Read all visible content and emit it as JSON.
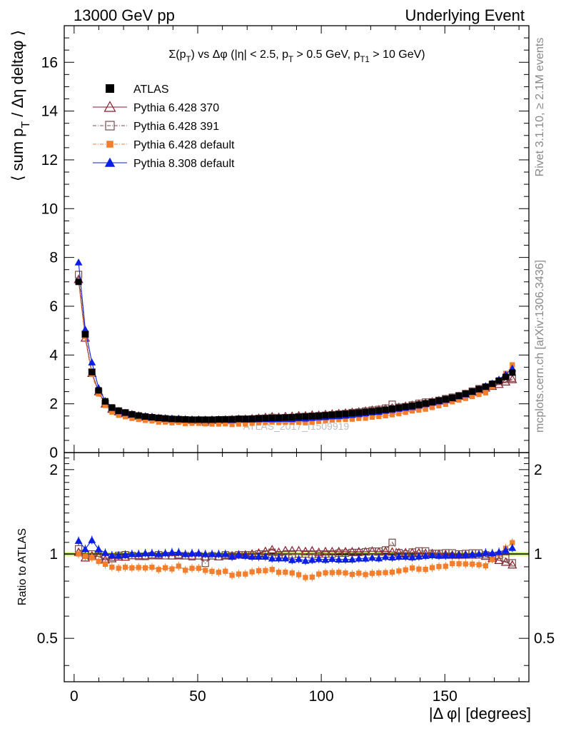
{
  "header": {
    "left": "13000 GeV pp",
    "right": "Underlying Event"
  },
  "side_labels": {
    "rivet": "Rivet 3.1.10, ≥ 2.1M events",
    "mcplots": "mcplots.cern.ch [arXiv:1306.3436]"
  },
  "watermark": "ATLAS_2017_I1509919",
  "colors": {
    "atlas": "#000000",
    "p370": "#8b1a2b",
    "p391": "#7a4a4a",
    "p6def": "#f57e2c",
    "p8def": "#0a1ee6",
    "band": "#c6f25a"
  },
  "chart_data": [
    {
      "type": "scatter",
      "title": "Σ(p_T) vs Δφ (|η| < 2.5, p_T > 0.5 GeV, p_T1 > 10 GeV)",
      "ylabel": "⟨ sum p_T / Δη deltaφ ⟩",
      "xlabel": "|Δ φ| [degrees]",
      "xlim": [
        -4,
        184
      ],
      "ylim": [
        0,
        17.5
      ],
      "grid": false,
      "legend_position": "top-left",
      "y_ticks": [
        0,
        2,
        4,
        6,
        8,
        10,
        12,
        14,
        16
      ],
      "x_ticks": [
        0,
        50,
        100,
        150
      ],
      "x": [
        1.8,
        4.5,
        7.2,
        9.9,
        12.6,
        15.3,
        18.0,
        20.7,
        23.4,
        26.1,
        28.8,
        31.5,
        34.2,
        36.9,
        39.6,
        42.3,
        45.0,
        47.7,
        50.4,
        53.1,
        55.8,
        58.5,
        61.2,
        63.9,
        66.6,
        69.3,
        72.0,
        74.7,
        77.4,
        80.1,
        82.8,
        85.5,
        88.2,
        90.9,
        93.6,
        96.3,
        99.0,
        101.7,
        104.4,
        107.1,
        109.8,
        112.5,
        115.2,
        117.9,
        120.6,
        123.3,
        126.0,
        128.7,
        131.4,
        134.1,
        136.8,
        139.5,
        142.2,
        144.9,
        147.6,
        150.3,
        153.0,
        155.7,
        158.4,
        161.1,
        163.8,
        166.5,
        169.2,
        171.9,
        174.6,
        177.3
      ],
      "series": [
        {
          "name": "ATLAS",
          "marker": "filled-square",
          "values": [
            7.0,
            4.85,
            3.3,
            2.55,
            2.1,
            1.85,
            1.72,
            1.64,
            1.57,
            1.52,
            1.48,
            1.45,
            1.42,
            1.4,
            1.38,
            1.37,
            1.36,
            1.35,
            1.35,
            1.35,
            1.35,
            1.36,
            1.36,
            1.37,
            1.38,
            1.38,
            1.39,
            1.4,
            1.41,
            1.42,
            1.43,
            1.44,
            1.45,
            1.47,
            1.48,
            1.5,
            1.51,
            1.53,
            1.55,
            1.57,
            1.59,
            1.62,
            1.64,
            1.67,
            1.7,
            1.73,
            1.76,
            1.8,
            1.84,
            1.88,
            1.92,
            1.97,
            2.02,
            2.07,
            2.13,
            2.19,
            2.25,
            2.33,
            2.41,
            2.5,
            2.6,
            2.7,
            2.82,
            2.95,
            3.1,
            3.28
          ]
        },
        {
          "name": "Pythia 6.428 370",
          "marker": "open-triangle",
          "values": [
            7.1,
            4.7,
            3.25,
            2.5,
            2.0,
            1.78,
            1.68,
            1.6,
            1.55,
            1.5,
            1.46,
            1.44,
            1.4,
            1.38,
            1.36,
            1.36,
            1.34,
            1.33,
            1.33,
            1.32,
            1.33,
            1.33,
            1.34,
            1.35,
            1.37,
            1.37,
            1.39,
            1.41,
            1.44,
            1.47,
            1.45,
            1.48,
            1.49,
            1.51,
            1.51,
            1.54,
            1.53,
            1.56,
            1.58,
            1.6,
            1.62,
            1.65,
            1.67,
            1.7,
            1.74,
            1.76,
            1.8,
            1.83,
            1.86,
            1.9,
            1.94,
            1.99,
            2.03,
            2.08,
            2.13,
            2.18,
            2.23,
            2.31,
            2.39,
            2.48,
            2.58,
            2.65,
            2.72,
            2.8,
            2.9,
            3.0
          ]
        },
        {
          "name": "Pythia 6.428 391",
          "marker": "open-square",
          "values": [
            7.3,
            4.85,
            3.3,
            2.5,
            2.02,
            1.8,
            1.7,
            1.63,
            1.55,
            1.49,
            1.45,
            1.43,
            1.41,
            1.38,
            1.36,
            1.35,
            1.34,
            1.32,
            1.33,
            1.25,
            1.33,
            1.33,
            1.35,
            1.35,
            1.37,
            1.37,
            1.38,
            1.4,
            1.41,
            1.44,
            1.42,
            1.43,
            1.44,
            1.47,
            1.48,
            1.49,
            1.51,
            1.53,
            1.55,
            1.58,
            1.6,
            1.64,
            1.66,
            1.7,
            1.74,
            1.77,
            1.82,
            1.98,
            1.86,
            1.88,
            1.95,
            2.02,
            2.07,
            2.08,
            2.14,
            2.21,
            2.27,
            2.33,
            2.42,
            2.52,
            2.62,
            2.68,
            2.78,
            2.92,
            3.0,
            3.05
          ]
        },
        {
          "name": "Pythia 6.428 default",
          "marker": "filled-square-small",
          "values": [
            7.0,
            4.75,
            3.2,
            2.4,
            1.93,
            1.66,
            1.53,
            1.47,
            1.4,
            1.36,
            1.32,
            1.3,
            1.25,
            1.25,
            1.22,
            1.24,
            1.19,
            1.2,
            1.2,
            1.18,
            1.17,
            1.17,
            1.18,
            1.15,
            1.17,
            1.17,
            1.2,
            1.22,
            1.23,
            1.25,
            1.23,
            1.24,
            1.24,
            1.24,
            1.22,
            1.24,
            1.28,
            1.31,
            1.33,
            1.35,
            1.36,
            1.37,
            1.4,
            1.41,
            1.45,
            1.48,
            1.51,
            1.55,
            1.6,
            1.65,
            1.71,
            1.74,
            1.78,
            1.85,
            1.92,
            1.98,
            2.08,
            2.15,
            2.22,
            2.3,
            2.38,
            2.45,
            2.7,
            2.95,
            3.25,
            3.6
          ]
        },
        {
          "name": "Pythia 8.308 default",
          "marker": "filled-triangle",
          "values": [
            7.8,
            5.05,
            3.7,
            2.65,
            2.12,
            1.83,
            1.7,
            1.63,
            1.57,
            1.52,
            1.49,
            1.46,
            1.42,
            1.41,
            1.4,
            1.39,
            1.36,
            1.36,
            1.36,
            1.35,
            1.35,
            1.36,
            1.36,
            1.34,
            1.37,
            1.36,
            1.36,
            1.37,
            1.38,
            1.37,
            1.38,
            1.39,
            1.38,
            1.41,
            1.4,
            1.43,
            1.45,
            1.46,
            1.49,
            1.5,
            1.52,
            1.55,
            1.58,
            1.61,
            1.65,
            1.67,
            1.72,
            1.75,
            1.8,
            1.84,
            1.87,
            1.93,
            1.99,
            2.05,
            2.1,
            2.16,
            2.23,
            2.31,
            2.39,
            2.49,
            2.6,
            2.73,
            2.84,
            3.0,
            3.2,
            3.45
          ]
        }
      ]
    },
    {
      "type": "scatter",
      "ylabel": "Ratio to ATLAS",
      "xlabel": "|Δ φ| [degrees]",
      "xlim": [
        -4,
        184
      ],
      "ylim": [
        0.35,
        2.3
      ],
      "y_scale": "log",
      "y_ticks": [
        0.5,
        1,
        2
      ],
      "x_ticks": [
        0,
        50,
        100,
        150
      ],
      "reference_band": [
        0.985,
        1.015
      ]
    }
  ]
}
